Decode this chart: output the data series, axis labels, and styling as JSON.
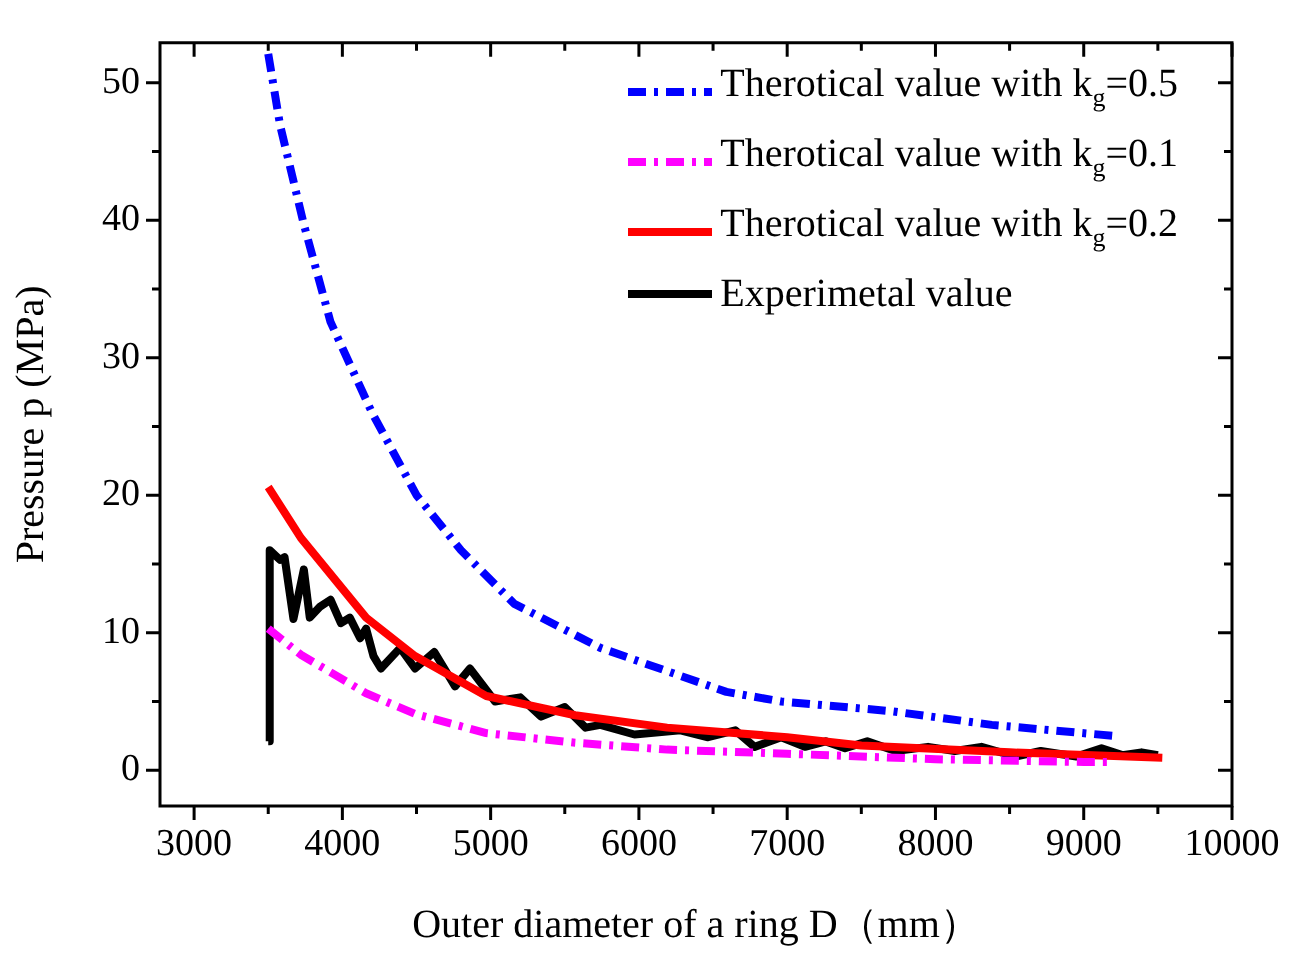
{
  "chart_data": {
    "type": "line",
    "xlabel": "Outer diameter of a ring D（mm）",
    "ylabel": "Pressure p (MPa)",
    "xlim": [
      2770,
      10000
    ],
    "ylim": [
      -2.6,
      52.9
    ],
    "xticks": [
      3000,
      {
        "value": 3500,
        "label": null
      },
      4000,
      {
        "value": 4500,
        "label": null
      },
      5000,
      {
        "value": 5500,
        "label": null
      },
      6000,
      {
        "value": 6500,
        "label": null
      },
      7000,
      {
        "value": 7500,
        "label": null
      },
      8000,
      {
        "value": 8500,
        "label": null
      },
      9000,
      {
        "value": 9500,
        "label": null
      },
      10000
    ],
    "yticks": [
      0,
      {
        "value": 5,
        "label": null
      },
      10,
      {
        "value": 15,
        "label": null
      },
      20,
      {
        "value": 25,
        "label": null
      },
      30,
      {
        "value": 35,
        "label": null
      },
      40,
      {
        "value": 45,
        "label": null
      },
      50
    ],
    "grid": false,
    "legend": "top right",
    "marker": "none",
    "series": [
      {
        "name": "Therotical value with k$_{g}$=0.5",
        "color": "#0000ff",
        "line_style": "dashed",
        "x": [
          3500,
          3580,
          3740,
          3920,
          4200,
          4500,
          4800,
          5160,
          5740,
          6590,
          6960,
          7700,
          8380,
          9200
        ],
        "values": [
          52.1,
          46.9,
          39.7,
          32.6,
          26,
          20,
          16,
          12.1,
          8.9,
          5.7,
          5.0,
          4.3,
          3.3,
          2.5
        ]
      },
      {
        "name": "Therotical value with k$_{g}$=0.1",
        "color": "#ff00ff",
        "line_style": "dashed",
        "x": [
          3500,
          3720,
          4160,
          4490,
          4970,
          5570,
          6190,
          7000,
          8000,
          9000,
          9200
        ],
        "values": [
          10.3,
          8.4,
          5.6,
          4.1,
          2.7,
          2.0,
          1.5,
          1.2,
          0.8,
          0.6,
          0.6
        ]
      },
      {
        "name": "Therotical value with k$_{g}$=0.2",
        "color": "#ff0000",
        "line_style": "solid",
        "x": [
          3500,
          3720,
          4160,
          4490,
          4970,
          5570,
          6190,
          7000,
          7500,
          8500,
          9530
        ],
        "values": [
          20.6,
          16.9,
          11.1,
          8.3,
          5.4,
          4.0,
          3.1,
          2.4,
          1.8,
          1.3,
          0.9
        ]
      },
      {
        "name": "Experimetal value",
        "color": "#000000",
        "line_style": "solid",
        "x": [
          3500,
          3510,
          3580,
          3610,
          3670,
          3740,
          3780,
          3850,
          3920,
          3990,
          4050,
          4120,
          4160,
          4210,
          4260,
          4390,
          4490,
          4620,
          4760,
          4860,
          5030,
          5200,
          5340,
          5500,
          5640,
          5740,
          5970,
          6280,
          6460,
          6650,
          6780,
          6960,
          7120,
          7260,
          7390,
          7540,
          7730,
          7950,
          8130,
          8310,
          8540,
          8710,
          8950,
          9120,
          9260,
          9390,
          9500
        ],
        "values": [
          2.1,
          16.0,
          15.3,
          15.5,
          11.0,
          14.6,
          11.1,
          11.9,
          12.4,
          10.7,
          11.1,
          9.6,
          10.3,
          8.3,
          7.4,
          8.9,
          7.4,
          8.6,
          6.1,
          7.4,
          5.0,
          5.3,
          3.9,
          4.6,
          3.1,
          3.3,
          2.6,
          2.9,
          2.4,
          2.9,
          1.7,
          2.4,
          1.7,
          2.1,
          1.6,
          2.1,
          1.4,
          1.7,
          1.4,
          1.7,
          1.0,
          1.4,
          1.0,
          1.6,
          1.1,
          1.3,
          1.1
        ]
      }
    ]
  }
}
